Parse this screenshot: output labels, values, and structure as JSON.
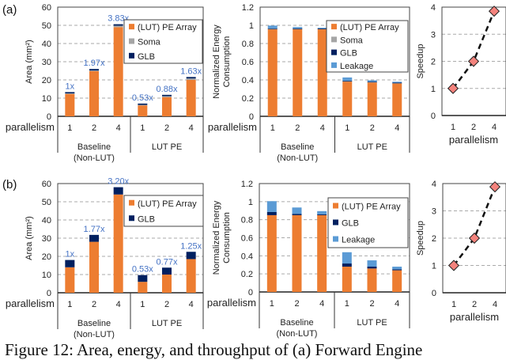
{
  "panels": {
    "a": "(a)",
    "b": "(b)"
  },
  "caption": "Figure 12: Area, energy, and throughput of (a) Forward Engine",
  "colors": {
    "pe_array": "#ED7D31",
    "soma": "#A5A5A5",
    "glb": "#002060",
    "leakage": "#5B9BD5",
    "ratio_label": "#4472C4",
    "marker": "#F4837D"
  },
  "chart_data": [
    {
      "id": "a-area",
      "type": "bar",
      "stacked": true,
      "ylabel": "Area (mm²)",
      "ylim": [
        0,
        60
      ],
      "yticks": [
        0,
        10,
        20,
        30,
        40,
        50,
        60
      ],
      "xlabel": "parallelism",
      "groups": [
        {
          "label": [
            "Baseline",
            "(Non-LUT)"
          ],
          "categories": [
            "1",
            "2",
            "4"
          ]
        },
        {
          "label": [
            "LUT PE"
          ],
          "categories": [
            "1",
            "2",
            "4"
          ]
        }
      ],
      "series": [
        {
          "name": "(LUT) PE Array",
          "key": "pe_array",
          "values": [
            12.3,
            24.8,
            49.0,
            6.0,
            10.5,
            20.0
          ]
        },
        {
          "name": "Soma",
          "key": "soma",
          "values": [
            0.3,
            0.4,
            0.8,
            0.3,
            0.6,
            0.8
          ]
        },
        {
          "name": "GLB",
          "key": "glb",
          "values": [
            0.7,
            0.8,
            0.8,
            0.7,
            0.7,
            0.8
          ]
        }
      ],
      "data_labels": [
        "1x",
        "1.97x",
        "3.83x",
        "0.53x",
        "0.88x",
        "1.63x"
      ],
      "grid": true,
      "legend": "top-right"
    },
    {
      "id": "a-energy",
      "type": "bar",
      "stacked": true,
      "ylabel": [
        "Normalized Energy",
        "Consumption"
      ],
      "ylim": [
        0,
        1.2
      ],
      "yticks": [
        0,
        0.2,
        0.4,
        0.6,
        0.8,
        1,
        1.2
      ],
      "xlabel": "parallelism",
      "groups": [
        {
          "label": [
            "Baseline",
            "(Non-LUT)"
          ],
          "categories": [
            "1",
            "2",
            "4"
          ]
        },
        {
          "label": [
            "LUT PE"
          ],
          "categories": [
            "1",
            "2",
            "4"
          ]
        }
      ],
      "series": [
        {
          "name": "(LUT) PE Array",
          "key": "pe_array",
          "values": [
            0.96,
            0.96,
            0.96,
            0.385,
            0.375,
            0.365
          ]
        },
        {
          "name": "Soma",
          "key": "soma",
          "values": [
            0.002,
            0.002,
            0.002,
            0.002,
            0.002,
            0.002
          ]
        },
        {
          "name": "GLB",
          "key": "glb",
          "values": [
            0.005,
            0.004,
            0.003,
            0.005,
            0.004,
            0.003
          ]
        },
        {
          "name": "Leakage",
          "key": "leakage",
          "values": [
            0.03,
            0.015,
            0.008,
            0.035,
            0.015,
            0.01
          ]
        }
      ],
      "grid": true,
      "legend": "top-right"
    },
    {
      "id": "a-speedup",
      "type": "line",
      "ylabel": "Speedup",
      "xlabel": "parallelism",
      "ylim": [
        0,
        4
      ],
      "yticks": [
        0,
        1,
        2,
        3,
        4
      ],
      "x": [
        "1",
        "2",
        "4"
      ],
      "values": [
        1,
        2,
        3.85
      ],
      "grid": true
    },
    {
      "id": "b-area",
      "type": "bar",
      "stacked": true,
      "ylabel": "Area (mm²)",
      "ylim": [
        0,
        60
      ],
      "yticks": [
        0,
        10,
        20,
        30,
        40,
        50,
        60
      ],
      "xlabel": "parallelism",
      "groups": [
        {
          "label": [
            "Baseline",
            "(Non-LUT)"
          ],
          "categories": [
            "1",
            "2",
            "4"
          ]
        },
        {
          "label": [
            "LUT PE"
          ],
          "categories": [
            "1",
            "2",
            "4"
          ]
        }
      ],
      "series": [
        {
          "name": "(LUT) PE Array",
          "key": "pe_array",
          "values": [
            14.0,
            28.0,
            54.0,
            6.0,
            10.0,
            18.5
          ]
        },
        {
          "name": "GLB",
          "key": "glb",
          "values": [
            4.0,
            3.8,
            4.0,
            3.7,
            3.8,
            4.0
          ]
        }
      ],
      "data_labels": [
        "1x",
        "1.77x",
        "3.20x",
        "0.53x",
        "0.77x",
        "1.25x"
      ],
      "grid": true,
      "legend": "top-right"
    },
    {
      "id": "b-energy",
      "type": "bar",
      "stacked": true,
      "ylabel": [
        "Normalized Energy",
        "Consumption"
      ],
      "ylim": [
        0,
        1.2
      ],
      "yticks": [
        0,
        0.2,
        0.4,
        0.6,
        0.8,
        1,
        1.2
      ],
      "xlabel": "parallelism",
      "groups": [
        {
          "label": [
            "Baseline",
            "(Non-LUT)"
          ],
          "categories": [
            "1",
            "2",
            "4"
          ]
        },
        {
          "label": [
            "LUT PE"
          ],
          "categories": [
            "1",
            "2",
            "4"
          ]
        }
      ],
      "series": [
        {
          "name": "(LUT) PE Array",
          "key": "pe_array",
          "values": [
            0.85,
            0.85,
            0.85,
            0.28,
            0.26,
            0.24
          ]
        },
        {
          "name": "GLB",
          "key": "glb",
          "values": [
            0.035,
            0.015,
            0.01,
            0.035,
            0.02,
            0.01
          ]
        },
        {
          "name": "Leakage",
          "key": "leakage",
          "values": [
            0.12,
            0.07,
            0.035,
            0.125,
            0.07,
            0.03
          ]
        }
      ],
      "grid": true,
      "legend": "top-right"
    },
    {
      "id": "b-speedup",
      "type": "line",
      "ylabel": "Speedup",
      "xlabel": "parallelism",
      "ylim": [
        0,
        4
      ],
      "yticks": [
        0,
        1,
        2,
        3,
        4
      ],
      "x": [
        "1",
        "2",
        "4"
      ],
      "values": [
        1,
        2,
        3.88
      ],
      "grid": true
    }
  ]
}
